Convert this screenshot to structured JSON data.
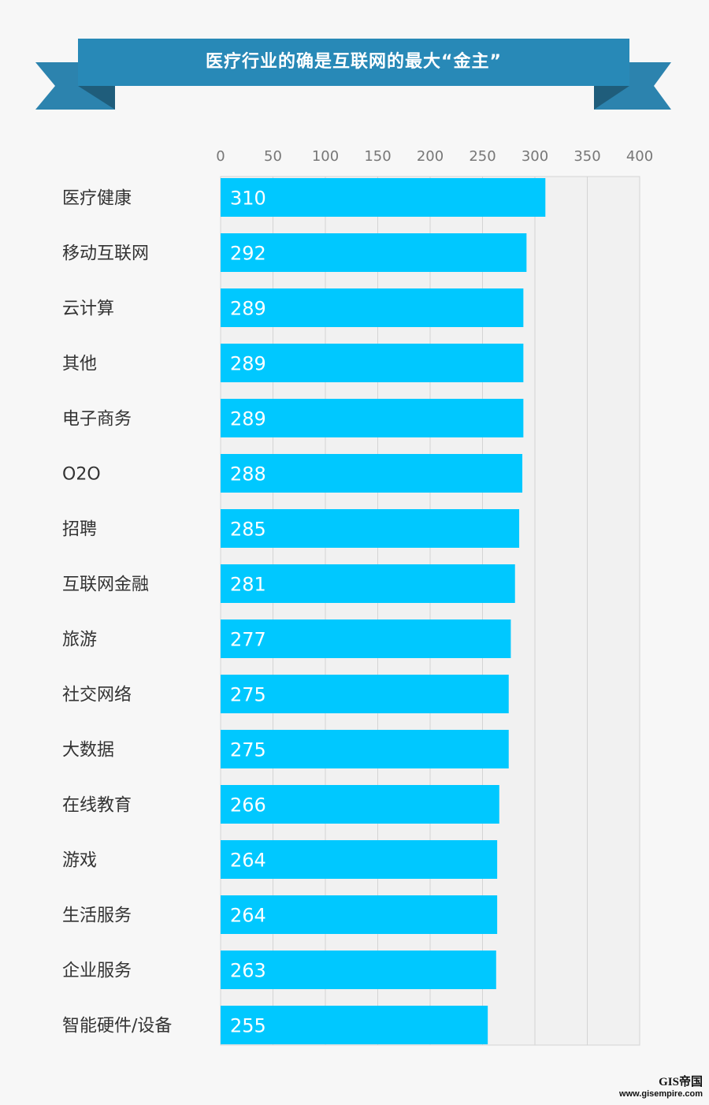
{
  "banner": {
    "title": "医疗行业的确是互联网的最大“金主”"
  },
  "watermark": {
    "brand": "GIS帝国",
    "url": "www.gisempire.com"
  },
  "colors": {
    "bar": "#00c8ff",
    "banner_main": "#2889b7",
    "banner_side": "#2c83ae",
    "banner_fold": "#1f5d7b",
    "plot_bg": "#f1f1f1",
    "grid": "#d4d4d4"
  },
  "chart_data": {
    "type": "bar",
    "orientation": "horizontal",
    "title": "医疗行业的确是互联网的最大“金主”",
    "xlim": [
      0,
      400
    ],
    "ticks": [
      0,
      50,
      100,
      150,
      200,
      250,
      300,
      350,
      400
    ],
    "grid": true,
    "categories": [
      "医疗健康",
      "移动互联网",
      "云计算",
      "其他",
      "电子商务",
      "O2O",
      "招聘",
      "互联网金融",
      "旅游",
      "社交网络",
      "大数据",
      "在线教育",
      "游戏",
      "生活服务",
      "企业服务",
      "智能硬件/设备"
    ],
    "values": [
      310,
      292,
      289,
      289,
      289,
      288,
      285,
      281,
      277,
      275,
      275,
      266,
      264,
      264,
      263,
      255
    ]
  }
}
